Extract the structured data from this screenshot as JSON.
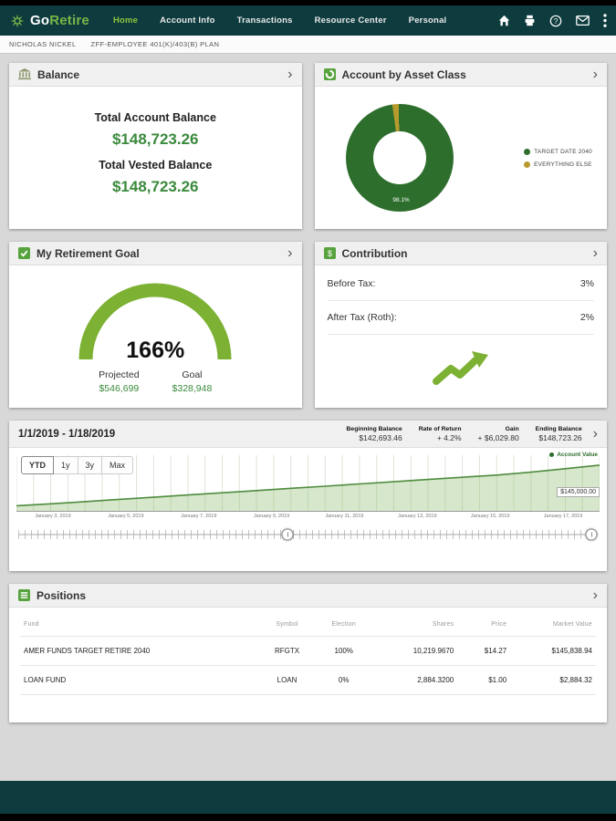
{
  "header": {
    "logo_go": "Go",
    "logo_retire": "Retire",
    "nav": [
      {
        "label": "Home",
        "active": true
      },
      {
        "label": "Account Info",
        "active": false
      },
      {
        "label": "Transactions",
        "active": false
      },
      {
        "label": "Resource Center",
        "active": false
      },
      {
        "label": "Personal",
        "active": false
      }
    ]
  },
  "subheader": {
    "user": "NICHOLAS NICKEL",
    "plan": "ZFF-EMPLOYEE 401(K)/403(B) PLAN"
  },
  "cards": {
    "balance": {
      "title": "Balance",
      "total_label": "Total Account Balance",
      "total_value": "$148,723.26",
      "vested_label": "Total Vested Balance",
      "vested_value": "$148,723.26"
    },
    "asset_class": {
      "title": "Account by Asset Class",
      "donut_label": "98.1%",
      "legend": [
        {
          "label": "TARGET DATE 2040",
          "color": "#2d6e2d"
        },
        {
          "label": "EVERYTHING ELSE",
          "color": "#b89b2e"
        }
      ]
    },
    "goal": {
      "title": "My Retirement Goal",
      "percent": "166%",
      "projected_label": "Projected",
      "projected_value": "$546,699",
      "goal_label": "Goal",
      "goal_value": "$328,948"
    },
    "contribution": {
      "title": "Contribution",
      "rows": [
        {
          "label": "Before Tax:",
          "value": "3%"
        },
        {
          "label": "After Tax (Roth):",
          "value": "2%"
        }
      ]
    }
  },
  "performance": {
    "date_range": "1/1/2019 - 1/18/2019",
    "stats": [
      {
        "label": "Beginning Balance",
        "value": "$142,693.46"
      },
      {
        "label": "Rate of Return",
        "value": "+ 4.2%"
      },
      {
        "label": "Gain",
        "value": "+ $6,029.80"
      },
      {
        "label": "Ending Balance",
        "value": "$148,723.26"
      }
    ],
    "range_buttons": [
      {
        "label": "YTD",
        "active": true
      },
      {
        "label": "1y",
        "active": false
      },
      {
        "label": "3y",
        "active": false
      },
      {
        "label": "Max",
        "active": false
      }
    ],
    "legend_label": "Account Value",
    "y_axis_label": "$145,000.00",
    "x_labels": [
      "January 3, 2019",
      "January 5, 2019",
      "January 7, 2019",
      "January 9, 2019",
      "January 11, 2019",
      "January 13, 2019",
      "January 15, 2019",
      "January 17, 2019"
    ],
    "chart": {
      "type": "area",
      "accent": "#4e8c3e",
      "fill": "rgba(139,185,106,0.35)",
      "grid_color": "#dce4d6",
      "values": [
        142693.46,
        142980,
        143310,
        143640,
        143960,
        144290,
        144620,
        144950,
        145280,
        145600,
        145930,
        146260,
        146590,
        146920,
        147250,
        147680,
        148200,
        148723.26
      ],
      "y_range": [
        141800,
        150200
      ]
    }
  },
  "positions": {
    "title": "Positions",
    "columns": [
      "Fund",
      "Symbol",
      "Election",
      "Shares",
      "Price",
      "Market Value"
    ],
    "rows": [
      [
        "AMER FUNDS TARGET RETIRE 2040",
        "RFGTX",
        "100%",
        "10,219.9670",
        "$14.27",
        "$145,838.94"
      ],
      [
        "LOAN FUND",
        "LOAN",
        "0%",
        "2,884.3200",
        "$1.00",
        "$2,884.32"
      ]
    ]
  }
}
